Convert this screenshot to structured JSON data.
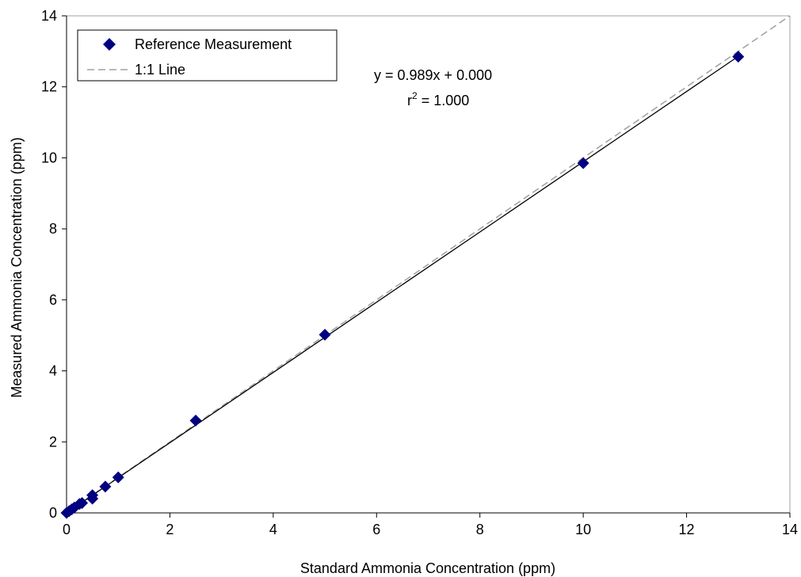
{
  "chart_data": {
    "type": "scatter",
    "title": "",
    "xlabel": "Standard Ammonia Concentration (ppm)",
    "ylabel": "Measured Ammonia Concentration (ppm)",
    "xlim": [
      0,
      14
    ],
    "ylim": [
      0,
      14
    ],
    "xticks": [
      "0",
      "2",
      "4",
      "6",
      "8",
      "10",
      "12",
      "14"
    ],
    "yticks": [
      "0",
      "2",
      "4",
      "6",
      "8",
      "10",
      "12",
      "14"
    ],
    "grid": false,
    "legend_position": "top-left",
    "series": [
      {
        "name": "Reference Measurement",
        "kind": "scatter",
        "marker": "diamond",
        "color": "#000080",
        "points": [
          {
            "x": 0.0,
            "y": 0.0
          },
          {
            "x": 0.05,
            "y": 0.05
          },
          {
            "x": 0.1,
            "y": 0.1
          },
          {
            "x": 0.15,
            "y": 0.15
          },
          {
            "x": 0.25,
            "y": 0.25
          },
          {
            "x": 0.3,
            "y": 0.28
          },
          {
            "x": 0.5,
            "y": 0.5
          },
          {
            "x": 0.5,
            "y": 0.4
          },
          {
            "x": 0.75,
            "y": 0.74
          },
          {
            "x": 1.0,
            "y": 1.0
          },
          {
            "x": 2.5,
            "y": 2.6
          },
          {
            "x": 5.0,
            "y": 5.02
          },
          {
            "x": 10.0,
            "y": 9.85
          },
          {
            "x": 13.0,
            "y": 12.85
          }
        ]
      },
      {
        "name": "1:1 Line",
        "kind": "line",
        "style": "dashed",
        "color": "#a0a0a0",
        "points": [
          {
            "x": 0,
            "y": 0
          },
          {
            "x": 14,
            "y": 14
          }
        ]
      },
      {
        "name": "",
        "kind": "line",
        "style": "solid",
        "color": "#000000",
        "slope": 0.989,
        "intercept": 0.0,
        "x_range": [
          0,
          13
        ]
      }
    ],
    "annotations": {
      "equation": "y = 0.989x + 0.000",
      "r2_label": "r",
      "r2_exp": "2",
      "r2_value": " = 1.000"
    }
  }
}
